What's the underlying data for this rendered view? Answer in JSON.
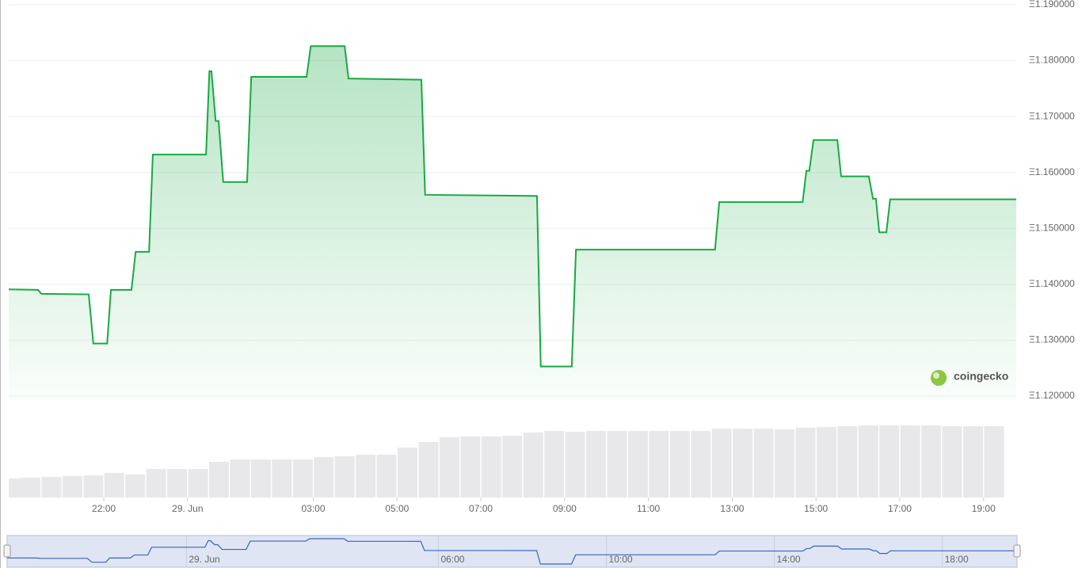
{
  "chart_data": {
    "type": "line",
    "watermark": "coingecko",
    "color": "#18a944",
    "grid": true,
    "x": [
      -4.27,
      -3.57,
      -3.49,
      -2.36,
      -2.25,
      -1.92,
      -1.83,
      -1.34,
      -1.24,
      -0.92,
      -0.83,
      0.44,
      0.52,
      0.57,
      0.67,
      0.74,
      0.85,
      1.42,
      1.52,
      2.84,
      2.94,
      3.75,
      3.84,
      5.58,
      5.67,
      8.34,
      8.43,
      9.17,
      9.27,
      12.59,
      12.69,
      14.68,
      14.77,
      14.84,
      14.94,
      15.51,
      15.6,
      16.26,
      16.36,
      16.43,
      16.51,
      16.68,
      16.77,
      19.78
    ],
    "values": [
      1.1391,
      1.139,
      1.1383,
      1.1382,
      1.1294,
      1.1294,
      1.139,
      1.139,
      1.1458,
      1.1458,
      1.1632,
      1.1632,
      1.1781,
      1.1781,
      1.1692,
      1.1692,
      1.1583,
      1.1583,
      1.1771,
      1.1771,
      1.1826,
      1.1826,
      1.1768,
      1.1766,
      1.156,
      1.1558,
      1.1253,
      1.1253,
      1.1462,
      1.1462,
      1.1547,
      1.1547,
      1.1603,
      1.1603,
      1.1658,
      1.1658,
      1.1593,
      1.1593,
      1.1553,
      1.1553,
      1.1493,
      1.1493,
      1.1552,
      1.1552
    ],
    "xlim": [
      -4.27,
      19.78
    ],
    "xticks": [
      {
        "value": -2,
        "label": "22:00"
      },
      {
        "value": 0,
        "label": "29. Jun"
      },
      {
        "value": 3,
        "label": "03:00"
      },
      {
        "value": 5,
        "label": "05:00"
      },
      {
        "value": 7,
        "label": "07:00"
      },
      {
        "value": 9,
        "label": "09:00"
      },
      {
        "value": 11,
        "label": "11:00"
      },
      {
        "value": 13,
        "label": "13:00"
      },
      {
        "value": 15,
        "label": "15:00"
      },
      {
        "value": 17,
        "label": "17:00"
      },
      {
        "value": 19,
        "label": "19:00"
      }
    ],
    "ylim": [
      1.12,
      1.19
    ],
    "yticks": [
      {
        "value": 1.12,
        "label": "Ξ1.120000"
      },
      {
        "value": 1.13,
        "label": "Ξ1.130000"
      },
      {
        "value": 1.14,
        "label": "Ξ1.140000"
      },
      {
        "value": 1.15,
        "label": "Ξ1.150000"
      },
      {
        "value": 1.16,
        "label": "Ξ1.160000"
      },
      {
        "value": 1.17,
        "label": "Ξ1.170000"
      },
      {
        "value": 1.18,
        "label": "Ξ1.180000"
      },
      {
        "value": 1.19,
        "label": "Ξ1.190000"
      }
    ],
    "volume": {
      "color": "#e8e8ea",
      "x": [
        -4.25,
        -3.75,
        -3.25,
        -2.75,
        -2.25,
        -1.75,
        -1.25,
        -0.75,
        -0.25,
        0.25,
        0.75,
        1.25,
        1.75,
        2.25,
        2.75,
        3.25,
        3.75,
        4.25,
        4.75,
        5.25,
        5.75,
        6.25,
        6.75,
        7.25,
        7.75,
        8.25,
        8.75,
        9.25,
        9.75,
        10.25,
        10.75,
        11.25,
        11.75,
        12.25,
        12.75,
        13.25,
        13.75,
        14.25,
        14.75,
        15.25,
        15.75,
        16.25,
        16.75,
        17.25,
        17.75,
        18.25,
        18.75,
        19.25
      ],
      "values": [
        24,
        25,
        26,
        27,
        28,
        31,
        29,
        36,
        36,
        36,
        45,
        48,
        48,
        48,
        48,
        51,
        52,
        54,
        54,
        63,
        70,
        76,
        77,
        77,
        78,
        82,
        84,
        83,
        84,
        84,
        84,
        84,
        84,
        84,
        87,
        87,
        87,
        86,
        88,
        89,
        90,
        91,
        91,
        91,
        91,
        90,
        90,
        90
      ]
    },
    "navigator": {
      "color": "#3b63c4",
      "xticks": [
        {
          "value": 0,
          "label": "29. Jun"
        },
        {
          "value": 6,
          "label": "06:00"
        },
        {
          "value": 10,
          "label": "10:00"
        },
        {
          "value": 14,
          "label": "14:00"
        },
        {
          "value": 18,
          "label": "18:00"
        }
      ]
    }
  }
}
